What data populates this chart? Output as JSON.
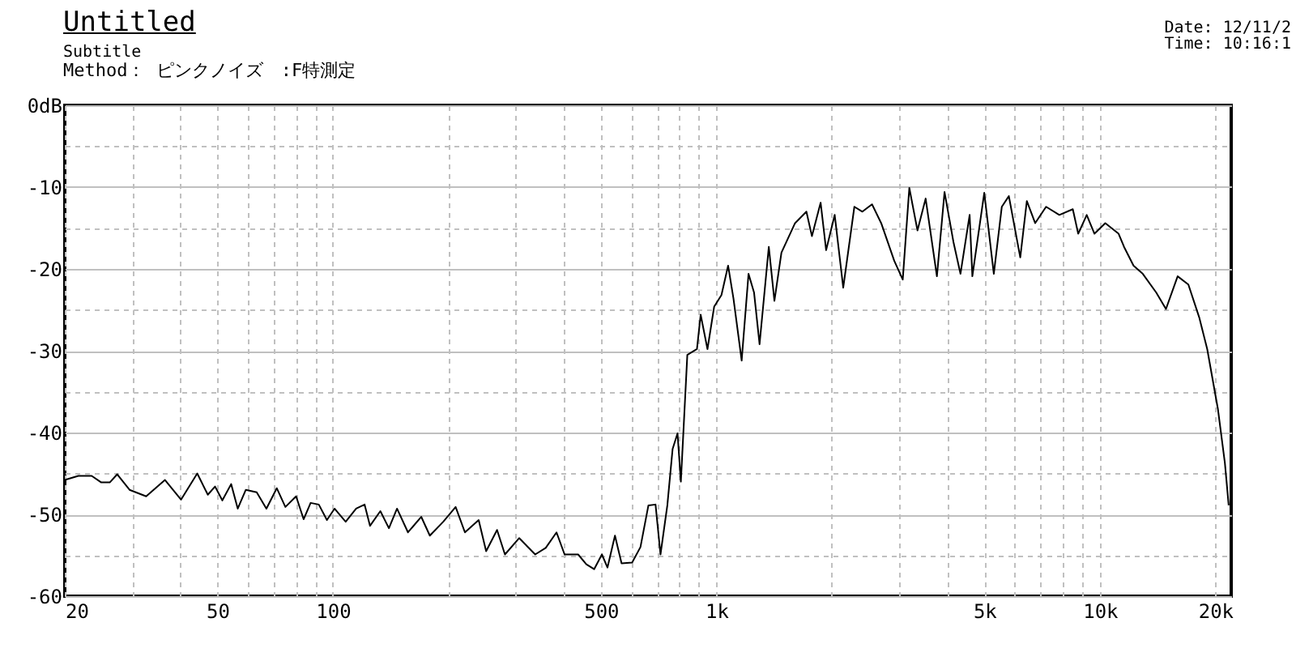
{
  "chart_data": {
    "type": "line",
    "title": "Untitled",
    "subtitle": "Subtitle",
    "annotations": [
      "Method： ピンクノイズ　:F特測定",
      "Date: 12/11/2",
      "Time: 10:16:1"
    ],
    "x": [
      20,
      21.7,
      23.5,
      24.9,
      26.2,
      27.4,
      29.5,
      32.6,
      36.5,
      40.2,
      44.3,
      47.2,
      49.3,
      51.5,
      54.3,
      56.5,
      59.3,
      63.3,
      67.1,
      71.4,
      75.2,
      80.2,
      83.9,
      87.5,
      91.9,
      96.5,
      101,
      108,
      115,
      121,
      125,
      133,
      140,
      147,
      157,
      170,
      179,
      194,
      209,
      221,
      240,
      251,
      268,
      281,
      306,
      337,
      359,
      383,
      402,
      436,
      458,
      480,
      503,
      520,
      544,
      566,
      603,
      634,
      665,
      694,
      715,
      745,
      769,
      792,
      808,
      840,
      890,
      910,
      948,
      987,
      1031,
      1073,
      1108,
      1164,
      1213,
      1254,
      1296,
      1370,
      1417,
      1478,
      1604,
      1717,
      1775,
      1870,
      1933,
      2035,
      2142,
      2290,
      2403,
      2546,
      2690,
      2909,
      3062,
      3185,
      3345,
      3513,
      3759,
      3935,
      4151,
      4330,
      4575,
      4650,
      4995,
      5290,
      5550,
      5790,
      6200,
      6450,
      6780,
      7240,
      7840,
      8500,
      8780,
      9240,
      9680,
      10330,
      11190,
      11560,
      12240,
      12940,
      14030,
      14870,
      15950,
      17010,
      18150,
      19050,
      20310,
      21180,
      21670
    ],
    "series": [
      {
        "color": "#000000",
        "values": [
          -45.8,
          -45.3,
          -45.3,
          -46.1,
          -46.1,
          -45.1,
          -47.0,
          -47.8,
          -45.8,
          -48.2,
          -45.0,
          -47.6,
          -46.6,
          -48.3,
          -46.3,
          -49.3,
          -47.0,
          -47.3,
          -49.3,
          -46.8,
          -49.1,
          -47.8,
          -50.6,
          -48.6,
          -48.8,
          -50.7,
          -49.3,
          -50.9,
          -49.3,
          -48.8,
          -51.4,
          -49.6,
          -51.7,
          -49.3,
          -52.2,
          -50.3,
          -52.6,
          -50.9,
          -49.1,
          -52.2,
          -50.7,
          -54.5,
          -51.9,
          -54.9,
          -52.9,
          -54.9,
          -54.1,
          -52.2,
          -54.9,
          -54.9,
          -56.1,
          -56.7,
          -54.9,
          -56.5,
          -52.6,
          -56.0,
          -55.9,
          -54.0,
          -48.9,
          -48.8,
          -54.9,
          -48.9,
          -42.0,
          -40.1,
          -46.0,
          -30.5,
          -29.8,
          -25.6,
          -29.8,
          -24.6,
          -23.2,
          -19.6,
          -23.6,
          -31.2,
          -20.6,
          -22.9,
          -29.2,
          -17.3,
          -23.9,
          -18.0,
          -14.4,
          -13.0,
          -16.0,
          -11.9,
          -17.7,
          -13.4,
          -22.3,
          -12.4,
          -13.0,
          -12.1,
          -14.4,
          -19.0,
          -21.3,
          -10.1,
          -15.3,
          -11.4,
          -20.9,
          -10.6,
          -16.7,
          -20.6,
          -13.4,
          -20.9,
          -10.7,
          -20.6,
          -12.4,
          -11.1,
          -18.6,
          -11.7,
          -14.4,
          -12.4,
          -13.4,
          -12.7,
          -15.7,
          -13.4,
          -15.7,
          -14.4,
          -15.7,
          -17.3,
          -19.6,
          -20.6,
          -22.9,
          -24.9,
          -20.9,
          -21.9,
          -25.9,
          -29.8,
          -37.1,
          -43.7,
          -48.9
        ]
      }
    ],
    "log": "x",
    "xlim": [
      20,
      22000
    ],
    "xticks": [
      20,
      {
        "value": 30,
        "label": null
      },
      {
        "value": 40,
        "label": null
      },
      50,
      {
        "value": 60,
        "label": null
      },
      {
        "value": 70,
        "label": null
      },
      {
        "value": 80,
        "label": null
      },
      {
        "value": 90,
        "label": null
      },
      100,
      {
        "value": 200,
        "label": null
      },
      {
        "value": 300,
        "label": null
      },
      {
        "value": 400,
        "label": null
      },
      500,
      {
        "value": 600,
        "label": null
      },
      {
        "value": 700,
        "label": null
      },
      {
        "value": 800,
        "label": null
      },
      {
        "value": 900,
        "label": null
      },
      {
        "value": 1000,
        "label": "1k"
      },
      {
        "value": 2000,
        "label": null
      },
      {
        "value": 3000,
        "label": null
      },
      {
        "value": 4000,
        "label": null
      },
      {
        "value": 5000,
        "label": "5k"
      },
      {
        "value": 6000,
        "label": null
      },
      {
        "value": 7000,
        "label": null
      },
      {
        "value": 8000,
        "label": null
      },
      {
        "value": 9000,
        "label": null
      },
      {
        "value": 10000,
        "label": "10k"
      },
      {
        "value": 20000,
        "label": "20k"
      }
    ],
    "ylim": [
      -60,
      0
    ],
    "yticks": [
      -60,
      {
        "value": -55,
        "label": null
      },
      -50,
      {
        "value": -45,
        "label": null
      },
      -40,
      {
        "value": -35,
        "label": null
      },
      -30,
      {
        "value": -25,
        "label": null
      },
      -20,
      {
        "value": -15,
        "label": null
      },
      -10,
      {
        "value": -5,
        "label": null
      },
      {
        "value": 0,
        "label": "0dB"
      }
    ],
    "grid": true
  }
}
